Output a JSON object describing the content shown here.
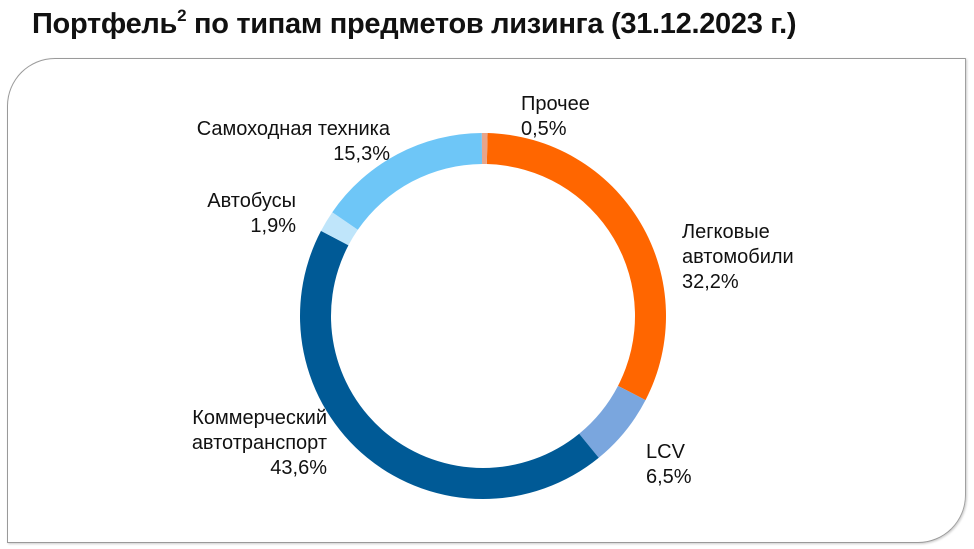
{
  "title": {
    "main": "Портфель",
    "sup": "2",
    "rest": " по типам предметов лизинга (31.12.2023 г.)"
  },
  "chart_data": {
    "type": "pie",
    "donut": true,
    "title": "Портфель² по типам предметов лизинга (31.12.2023 г.)",
    "unit": "%",
    "slices": [
      {
        "label": "Легковые автомобили",
        "value": 32.2,
        "display": "32,2%",
        "color": "#FF6600"
      },
      {
        "label": "LCV",
        "value": 6.5,
        "display": "6,5%",
        "color": "#7AA6DE"
      },
      {
        "label": "Коммерческий автотранспорт",
        "value": 43.6,
        "display": "43,6%",
        "color": "#005A96"
      },
      {
        "label": "Автобусы",
        "value": 1.9,
        "display": "1,9%",
        "color": "#BFE5FA"
      },
      {
        "label": "Самоходная техника",
        "value": 15.3,
        "display": "15,3%",
        "color": "#6EC6F7"
      },
      {
        "label": "Прочее",
        "value": 0.5,
        "display": "0,5%",
        "color": "#E8A58A"
      }
    ],
    "label_lines": {
      "Легковые автомобили": [
        "Легковые",
        "автомобили"
      ],
      "Коммерческий автотранспорт": [
        "Коммерческий",
        "автотранспорт"
      ]
    },
    "legend": "none"
  }
}
